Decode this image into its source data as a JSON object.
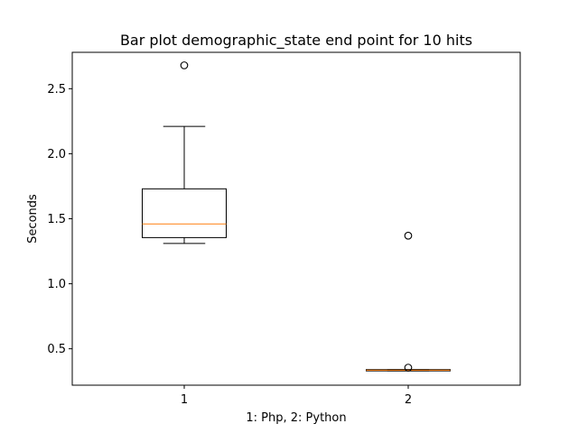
{
  "chart_data": {
    "type": "box",
    "title": "Bar plot demographic_state end point for 10 hits",
    "xlabel": "1: Php, 2: Python",
    "ylabel": "Seconds",
    "ylim": [
      0.22,
      2.78
    ],
    "xlim": [
      0.5,
      2.5
    ],
    "yticks": [
      0.5,
      1.0,
      1.5,
      2.0,
      2.5
    ],
    "ytick_labels": [
      "0.5",
      "1.0",
      "1.5",
      "2.0",
      "2.5"
    ],
    "categories": [
      "1",
      "2"
    ],
    "boxes": [
      {
        "x": 1,
        "whisker_low": 1.31,
        "q1": 1.355,
        "median": 1.46,
        "q3": 1.73,
        "whisker_high": 2.21,
        "outliers": [
          2.68
        ]
      },
      {
        "x": 2,
        "whisker_low": 0.33,
        "q1": 0.33,
        "median": 0.335,
        "q3": 0.34,
        "whisker_high": 0.34,
        "outliers": [
          1.37,
          0.355
        ]
      }
    ],
    "grid": false,
    "colors": {
      "box": "#000000",
      "median": "#ff7f0e",
      "outlier": "#000000"
    }
  }
}
